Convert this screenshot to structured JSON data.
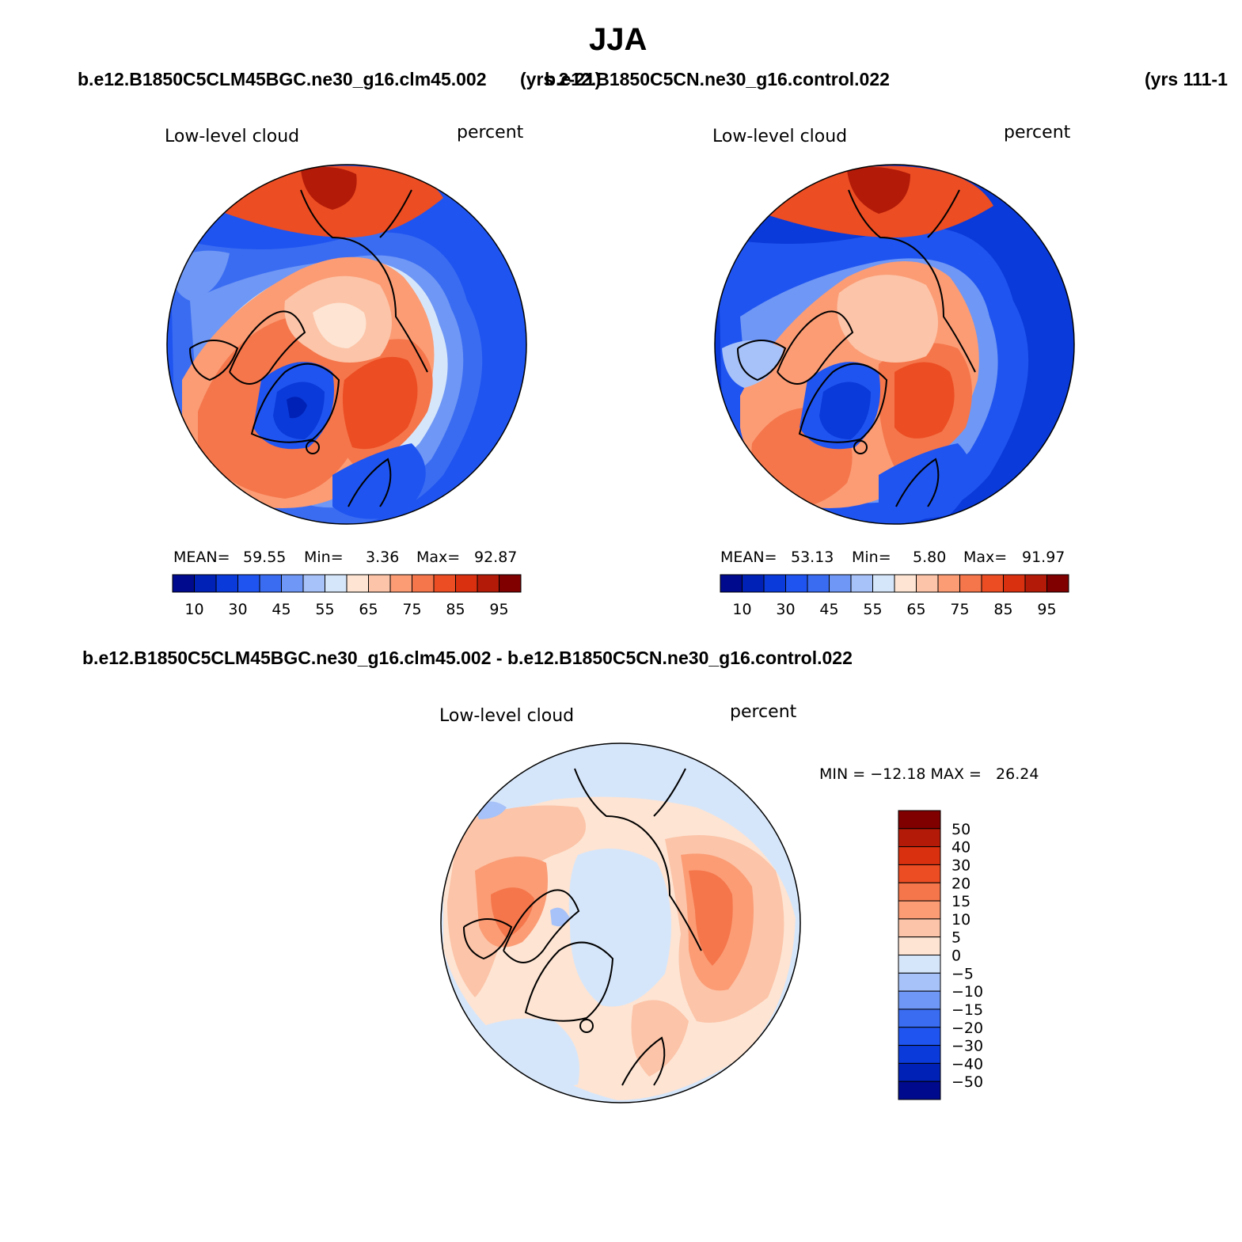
{
  "figure": {
    "title": "JJA",
    "case1_heading": "b.e12.B1850C5CLM45BGC.ne30_g16.clm45.002",
    "case1_years": "(yrs 2-21)",
    "case2_heading": "b.e12.B1850C5CN.ne30_g16.control.022",
    "case2_years": "(yrs 111-1",
    "diff_heading": "b.e12.B1850C5CLM45BGC.ne30_g16.clm45.002 - b.e12.B1850C5CN.ne30_g16.control.022"
  },
  "colors": {
    "abs_scale": [
      "#000a8c",
      "#0021b5",
      "#0a3ad9",
      "#1f54f0",
      "#3a6cf2",
      "#6f97f5",
      "#a7c2f8",
      "#d6e6fa",
      "#fde4d3",
      "#fcc4a8",
      "#fb9c75",
      "#f5764b",
      "#ec4d23",
      "#d9300f",
      "#b31b08",
      "#800000"
    ],
    "diff_scale": [
      "#800000",
      "#b31b08",
      "#d9300f",
      "#ec4d23",
      "#f5764b",
      "#fb9c75",
      "#fcc4a8",
      "#fde4d3",
      "#d6e6fa",
      "#a7c2f8",
      "#6f97f5",
      "#3a6cf2",
      "#1f54f0",
      "#0a3ad9",
      "#0021b5",
      "#000a8c"
    ]
  },
  "chart_data": [
    {
      "type": "heatmap",
      "projection": "north polar stereographic",
      "title": "Low-level cloud",
      "units": "percent",
      "stats": {
        "mean_label": "MEAN=",
        "mean": "59.55",
        "min_label": "Min=",
        "min": "3.36",
        "max_label": "Max=",
        "max": "92.87"
      },
      "colorbar_ticks": [
        "10",
        "30",
        "45",
        "55",
        "65",
        "75",
        "85",
        "95"
      ],
      "levels": [
        5,
        10,
        20,
        30,
        40,
        45,
        50,
        55,
        60,
        65,
        70,
        75,
        80,
        85,
        90,
        95
      ]
    },
    {
      "type": "heatmap",
      "projection": "north polar stereographic",
      "title": "Low-level cloud",
      "units": "percent",
      "stats": {
        "mean_label": "MEAN=",
        "mean": "53.13",
        "min_label": "Min=",
        "min": "5.80",
        "max_label": "Max=",
        "max": "91.97"
      },
      "colorbar_ticks": [
        "10",
        "30",
        "45",
        "55",
        "65",
        "75",
        "85",
        "95"
      ],
      "levels": [
        5,
        10,
        20,
        30,
        40,
        45,
        50,
        55,
        60,
        65,
        70,
        75,
        80,
        85,
        90,
        95
      ]
    },
    {
      "type": "heatmap",
      "projection": "north polar stereographic",
      "title": "Low-level cloud",
      "units": "percent",
      "stats_text": "MIN = −12.18 MAX =   26.24",
      "colorbar_ticks": [
        "50",
        "40",
        "30",
        "20",
        "15",
        "10",
        "5",
        "0",
        "−5",
        "−10",
        "−15",
        "−20",
        "−30",
        "−40",
        "−50"
      ],
      "levels": [
        -50,
        -40,
        -30,
        -20,
        -15,
        -10,
        -5,
        0,
        5,
        10,
        15,
        20,
        30,
        40,
        50
      ]
    }
  ]
}
